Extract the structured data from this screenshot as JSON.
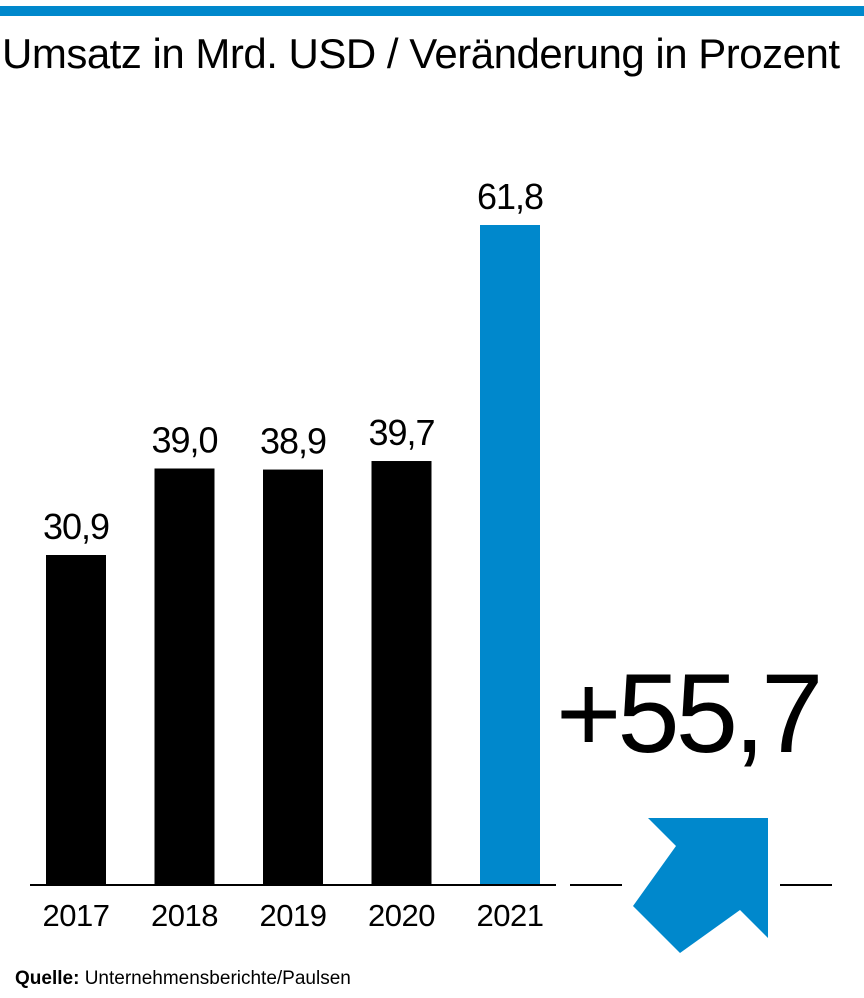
{
  "header": {
    "title": "Umsatz in Mrd. USD / Veränderung in Prozent"
  },
  "chart_data": {
    "type": "bar",
    "title": "Umsatz in Mrd. USD / Veränderung in Prozent",
    "categories": [
      "2017",
      "2018",
      "2019",
      "2020",
      "2021"
    ],
    "values": [
      30.9,
      39.0,
      38.9,
      39.7,
      61.8
    ],
    "value_labels": [
      "30,9",
      "39,0",
      "38,9",
      "39,7",
      "61,8"
    ],
    "highlight_index": 4,
    "ylim": [
      0,
      61.8
    ],
    "grid": false,
    "xlabel": "",
    "ylabel": ""
  },
  "change": {
    "label": "+55,7"
  },
  "source": {
    "prefix": "Quelle:",
    "text": "Unternehmensberichte/Paulsen"
  },
  "colors": {
    "accent": "#0088cc",
    "bar": "#000000",
    "rule": "#0088cc"
  }
}
